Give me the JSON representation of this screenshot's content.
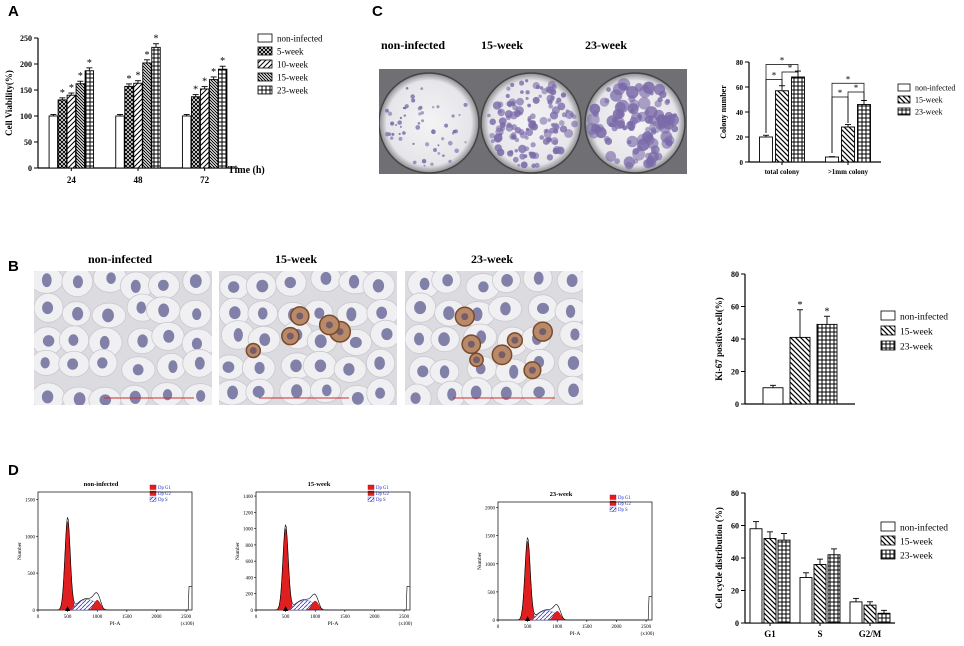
{
  "panels": {
    "A": "A",
    "B": "B",
    "C": "C",
    "D": "D"
  },
  "patterns_legend": {
    "p0": "open",
    "p1": "dense-cross",
    "p2": "diag",
    "p3": "diag-dense",
    "p4": "grid"
  },
  "panelA": {
    "chart_data": {
      "type": "bar",
      "ylabel": "Cell Viability(%)",
      "xlabel": "Time (h)",
      "ylim": [
        0,
        250
      ],
      "yticks": [
        "0",
        "50",
        "100",
        "150",
        "200",
        "250"
      ],
      "categories": [
        "24",
        "48",
        "72"
      ],
      "series": [
        {
          "name": "non-infected",
          "values": [
            100,
            100,
            100
          ]
        },
        {
          "name": "5-week",
          "values": [
            131,
            157,
            137
          ]
        },
        {
          "name": "10-week",
          "values": [
            140,
            163,
            152
          ]
        },
        {
          "name": "15-week",
          "values": [
            162,
            202,
            170
          ]
        },
        {
          "name": "23-week",
          "values": [
            187,
            232,
            190
          ]
        }
      ],
      "significance": "*",
      "legend_position": "right"
    }
  },
  "panelC": {
    "image_labels": [
      "non-infected",
      "15-week",
      "23-week"
    ],
    "chart_data": {
      "type": "bar",
      "ylabel": "Colony number",
      "ylim": [
        0,
        80
      ],
      "yticks": [
        "0",
        "20",
        "40",
        "60",
        "80"
      ],
      "categories": [
        "total colony",
        ">1mm colony"
      ],
      "series": [
        {
          "name": "non-infected",
          "values": [
            20,
            4
          ]
        },
        {
          "name": "15-week",
          "values": [
            57,
            28
          ]
        },
        {
          "name": "23-week",
          "values": [
            68,
            46
          ]
        }
      ],
      "significance": "*",
      "legend_position": "right"
    }
  },
  "panelB": {
    "image_labels": [
      "non-infected",
      "15-week",
      "23-week"
    ],
    "chart_data": {
      "type": "bar",
      "ylabel": "Ki-67 positive cell(%)",
      "ylim": [
        0,
        80
      ],
      "yticks": [
        "0",
        "20",
        "40",
        "60",
        "80"
      ],
      "categories": [
        ""
      ],
      "series": [
        {
          "name": "non-infected",
          "values": [
            10
          ]
        },
        {
          "name": "15-week",
          "values": [
            41
          ]
        },
        {
          "name": "23-week",
          "values": [
            49
          ]
        }
      ],
      "errors": [
        1.5,
        17,
        5
      ],
      "significance": "*",
      "legend_position": "right"
    }
  },
  "panelD": {
    "histograms": [
      {
        "title": "non-infected",
        "yticks": [
          "0",
          "500",
          "1000",
          "1500"
        ],
        "ymax": 1600,
        "peak_g1": 1200
      },
      {
        "title": "15-week",
        "yticks": [
          "0",
          "200",
          "400",
          "600",
          "800",
          "1000",
          "1200",
          "1400"
        ],
        "ymax": 1450,
        "peak_g1": 1000
      },
      {
        "title": "23-week",
        "yticks": [
          "0",
          "500",
          "1000",
          "1500",
          "2000"
        ],
        "ymax": 2100,
        "peak_g1": 1400
      }
    ],
    "hist_xticks": [
      "0",
      "500",
      "1000",
      "1500",
      "2000",
      "2500"
    ],
    "hist_xlabel": "PI-A",
    "hist_xunit": "(x100)",
    "hist_ylabel": "Number",
    "hist_legend": [
      "Dp G1",
      "Dp G2",
      "Dp S"
    ],
    "chart_data": {
      "type": "bar",
      "ylabel": "Cell cycle distribution (%)",
      "ylim": [
        0,
        80
      ],
      "yticks": [
        "0",
        "20",
        "40",
        "60",
        "80"
      ],
      "categories": [
        "G1",
        "S",
        "G2/M"
      ],
      "series": [
        {
          "name": "non-infected",
          "values": [
            58,
            28,
            13
          ]
        },
        {
          "name": "15-week",
          "values": [
            52,
            36,
            11
          ]
        },
        {
          "name": "23-week",
          "values": [
            51,
            42,
            6
          ]
        }
      ],
      "legend_position": "right"
    }
  }
}
